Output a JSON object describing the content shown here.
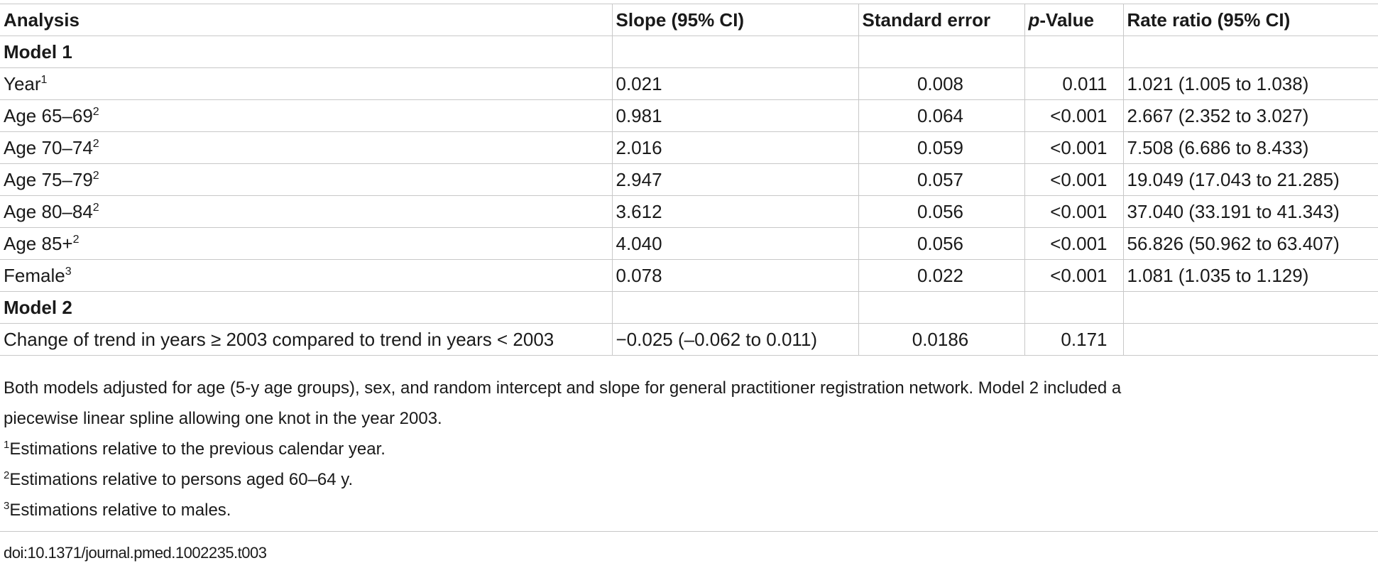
{
  "table": {
    "headers": {
      "analysis": "Analysis",
      "slope": "Slope (95% CI)",
      "se": "Standard error",
      "p_italic": "p",
      "p_rest": "-Value",
      "rate_ratio": "Rate ratio (95% CI)"
    },
    "model1": {
      "label": "Model 1",
      "rows": [
        {
          "label": "Year",
          "sup": "1",
          "slope": "0.021",
          "se": "0.008",
          "p": "0.011",
          "rr": "1.021 (1.005 to 1.038)"
        },
        {
          "label": "Age 65–69",
          "sup": "2",
          "slope": "0.981",
          "se": "0.064",
          "p": "<0.001",
          "rr": "2.667 (2.352 to 3.027)"
        },
        {
          "label": "Age 70–74",
          "sup": "2",
          "slope": "2.016",
          "se": "0.059",
          "p": "<0.001",
          "rr": "7.508 (6.686 to 8.433)"
        },
        {
          "label": "Age 75–79",
          "sup": "2",
          "slope": "2.947",
          "se": "0.057",
          "p": "<0.001",
          "rr": "19.049 (17.043 to 21.285)"
        },
        {
          "label": "Age 80–84",
          "sup": "2",
          "slope": "3.612",
          "se": "0.056",
          "p": "<0.001",
          "rr": "37.040 (33.191 to 41.343)"
        },
        {
          "label": "Age 85+",
          "sup": "2",
          "slope": "4.040",
          "se": "0.056",
          "p": "<0.001",
          "rr": "56.826 (50.962 to 63.407)"
        },
        {
          "label": "Female",
          "sup": "3",
          "slope": "0.078",
          "se": "0.022",
          "p": "<0.001",
          "rr": "1.081 (1.035 to 1.129)"
        }
      ]
    },
    "model2": {
      "label": "Model 2",
      "rows": [
        {
          "label": "Change of trend in years ≥ 2003 compared to trend in years < 2003",
          "slope": "−0.025 (–0.062 to 0.011)",
          "se": "0.0186",
          "p": "0.171",
          "rr": ""
        }
      ]
    }
  },
  "notes": {
    "main_line1": "Both models adjusted for age (5-y age groups), sex, and random intercept and slope for general practitioner registration network. Model 2 included a",
    "main_line2": "piecewise linear spline allowing one knot in the year 2003.",
    "footnotes": [
      {
        "sup": "1",
        "text": "Estimations relative to the previous calendar year."
      },
      {
        "sup": "2",
        "text": "Estimations relative to persons aged 60–64 y."
      },
      {
        "sup": "3",
        "text": "Estimations relative to males."
      }
    ]
  },
  "doi": "doi:10.1371/journal.pmed.1002235.t003"
}
